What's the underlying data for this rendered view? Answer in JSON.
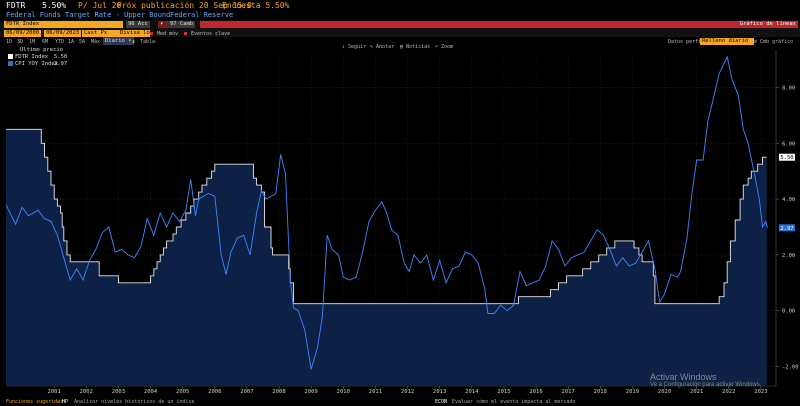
{
  "header": {
    "ticker": "FDTR",
    "last_value": "5.50%",
    "date": "P/ Jul 26",
    "next_release": "Próx publicación 20 Sep 15:0",
    "survey": "Encuesta 5.50%",
    "subtitle": "Federal Funds Target Rate - Upper Bound",
    "source": "Federal Reserve"
  },
  "command_bar": {
    "security": "FDTR Index",
    "actions_label": "96 Acc",
    "compare_label": "97 Camb",
    "chart_title": "Gráfico de líneas"
  },
  "settings_bar": {
    "start_date": "06/09/2000",
    "end_date": "06/09/2023",
    "field": "Last Px",
    "currency": "Divisa local",
    "more_label": "Med móv",
    "events_label": "Eventos clave"
  },
  "range_bar": {
    "ranges": [
      "1D",
      "3D",
      "1M",
      "6M",
      "YTD",
      "1A",
      "5A",
      "Máx"
    ],
    "frequency": "Diario",
    "table_label": "Tabla",
    "data_label": "Datos perfil",
    "data_value": "Relleno diario",
    "chart_settings": "Cmb gráfico"
  },
  "toolbar": {
    "track": "Seguir",
    "annotate": "Anotar",
    "news": "Noticias",
    "zoom": "Zoom"
  },
  "legend": {
    "title": "Último precio",
    "items": [
      {
        "name": "FDTR Index",
        "value": "5.50",
        "color": "#ffffff"
      },
      {
        "name": "CPI YOY Index",
        "value": "2.97",
        "color": "#2b6fd6"
      }
    ]
  },
  "colors": {
    "fdtr_line": "#e8e8e8",
    "fdtr_fill": "#0c2145",
    "cpi_line": "#3f86ff",
    "cpi_label_bg": "#2b6fd6",
    "fdtr_label_bg": "#ffffff"
  },
  "chart_data": {
    "type": "line",
    "x_axis": {
      "ticks": [
        "2001",
        "2002",
        "2003",
        "2004",
        "2005",
        "2006",
        "2007",
        "2008",
        "2009",
        "2010",
        "2011",
        "2012",
        "2013",
        "2014",
        "2015",
        "2016",
        "2017",
        "2018",
        "2019",
        "2020",
        "2021",
        "2022",
        "2023"
      ]
    },
    "y_axis": {
      "ticks": [
        "8.00",
        "6.00",
        "4.00",
        "2.00",
        "0.00",
        "-2.00"
      ],
      "range": [
        -2.7,
        9.2
      ],
      "position": "right"
    },
    "grid": true,
    "series": [
      {
        "name": "FDTR Index",
        "last_label": "5.50",
        "points": [
          [
            2000.0,
            6.5
          ],
          [
            2001.0,
            6.5
          ],
          [
            2001.1,
            6.0
          ],
          [
            2001.2,
            5.5
          ],
          [
            2001.3,
            5.0
          ],
          [
            2001.4,
            4.5
          ],
          [
            2001.5,
            4.0
          ],
          [
            2001.6,
            3.75
          ],
          [
            2001.7,
            3.5
          ],
          [
            2001.75,
            3.0
          ],
          [
            2001.8,
            2.5
          ],
          [
            2001.9,
            2.0
          ],
          [
            2002.0,
            1.75
          ],
          [
            2002.9,
            1.25
          ],
          [
            2003.5,
            1.0
          ],
          [
            2004.5,
            1.25
          ],
          [
            2004.6,
            1.5
          ],
          [
            2004.7,
            1.75
          ],
          [
            2004.8,
            2.0
          ],
          [
            2004.9,
            2.25
          ],
          [
            2005.0,
            2.5
          ],
          [
            2005.2,
            2.75
          ],
          [
            2005.3,
            3.0
          ],
          [
            2005.45,
            3.25
          ],
          [
            2005.6,
            3.5
          ],
          [
            2005.75,
            3.75
          ],
          [
            2005.85,
            4.0
          ],
          [
            2006.0,
            4.25
          ],
          [
            2006.1,
            4.5
          ],
          [
            2006.25,
            4.75
          ],
          [
            2006.4,
            5.0
          ],
          [
            2006.5,
            5.25
          ],
          [
            2007.7,
            4.75
          ],
          [
            2007.8,
            4.5
          ],
          [
            2007.95,
            4.25
          ],
          [
            2008.05,
            3.0
          ],
          [
            2008.25,
            2.25
          ],
          [
            2008.3,
            2.0
          ],
          [
            2008.8,
            1.5
          ],
          [
            2008.85,
            1.0
          ],
          [
            2008.95,
            0.25
          ],
          [
            2015.95,
            0.5
          ],
          [
            2016.95,
            0.75
          ],
          [
            2017.2,
            1.0
          ],
          [
            2017.45,
            1.25
          ],
          [
            2017.95,
            1.5
          ],
          [
            2018.2,
            1.75
          ],
          [
            2018.45,
            2.0
          ],
          [
            2018.7,
            2.25
          ],
          [
            2018.95,
            2.5
          ],
          [
            2019.55,
            2.25
          ],
          [
            2019.7,
            2.0
          ],
          [
            2019.8,
            1.75
          ],
          [
            2020.15,
            1.25
          ],
          [
            2020.2,
            0.25
          ],
          [
            2022.2,
            0.5
          ],
          [
            2022.35,
            1.0
          ],
          [
            2022.45,
            1.75
          ],
          [
            2022.55,
            2.5
          ],
          [
            2022.7,
            3.25
          ],
          [
            2022.85,
            4.0
          ],
          [
            2022.95,
            4.5
          ],
          [
            2023.1,
            4.75
          ],
          [
            2023.2,
            5.0
          ],
          [
            2023.4,
            5.25
          ],
          [
            2023.55,
            5.5
          ],
          [
            2023.68,
            5.5
          ]
        ]
      },
      {
        "name": "CPI YOY Index",
        "last_label": "2.97",
        "points": [
          [
            2000.0,
            3.8
          ],
          [
            2000.3,
            3.1
          ],
          [
            2000.5,
            3.7
          ],
          [
            2000.7,
            3.4
          ],
          [
            2001.0,
            3.6
          ],
          [
            2001.2,
            3.3
          ],
          [
            2001.4,
            3.2
          ],
          [
            2001.6,
            2.7
          ],
          [
            2001.8,
            1.9
          ],
          [
            2002.0,
            1.1
          ],
          [
            2002.2,
            1.5
          ],
          [
            2002.4,
            1.1
          ],
          [
            2002.6,
            1.8
          ],
          [
            2002.8,
            2.2
          ],
          [
            2003.0,
            2.8
          ],
          [
            2003.2,
            3.0
          ],
          [
            2003.4,
            2.1
          ],
          [
            2003.6,
            2.2
          ],
          [
            2003.8,
            2.0
          ],
          [
            2004.0,
            1.9
          ],
          [
            2004.2,
            2.3
          ],
          [
            2004.4,
            3.3
          ],
          [
            2004.6,
            2.7
          ],
          [
            2004.8,
            3.5
          ],
          [
            2005.0,
            3.0
          ],
          [
            2005.2,
            3.5
          ],
          [
            2005.4,
            3.2
          ],
          [
            2005.6,
            3.6
          ],
          [
            2005.75,
            4.7
          ],
          [
            2005.9,
            3.4
          ],
          [
            2006.0,
            4.0
          ],
          [
            2006.3,
            4.2
          ],
          [
            2006.5,
            4.1
          ],
          [
            2006.7,
            2.0
          ],
          [
            2006.85,
            1.3
          ],
          [
            2007.0,
            2.1
          ],
          [
            2007.2,
            2.6
          ],
          [
            2007.4,
            2.7
          ],
          [
            2007.6,
            2.0
          ],
          [
            2007.8,
            3.5
          ],
          [
            2007.95,
            4.3
          ],
          [
            2008.1,
            4.0
          ],
          [
            2008.4,
            4.2
          ],
          [
            2008.55,
            5.6
          ],
          [
            2008.7,
            4.9
          ],
          [
            2008.85,
            1.1
          ],
          [
            2008.95,
            0.1
          ],
          [
            2009.1,
            0.0
          ],
          [
            2009.3,
            -0.7
          ],
          [
            2009.5,
            -2.1
          ],
          [
            2009.7,
            -1.3
          ],
          [
            2009.85,
            -0.2
          ],
          [
            2010.0,
            2.7
          ],
          [
            2010.15,
            2.2
          ],
          [
            2010.35,
            2.0
          ],
          [
            2010.5,
            1.2
          ],
          [
            2010.7,
            1.1
          ],
          [
            2010.9,
            1.2
          ],
          [
            2011.1,
            2.1
          ],
          [
            2011.3,
            3.2
          ],
          [
            2011.5,
            3.6
          ],
          [
            2011.7,
            3.9
          ],
          [
            2011.85,
            3.5
          ],
          [
            2012.0,
            2.9
          ],
          [
            2012.2,
            2.7
          ],
          [
            2012.4,
            1.7
          ],
          [
            2012.55,
            1.4
          ],
          [
            2012.7,
            2.0
          ],
          [
            2012.9,
            1.7
          ],
          [
            2013.1,
            2.0
          ],
          [
            2013.3,
            1.1
          ],
          [
            2013.5,
            1.8
          ],
          [
            2013.7,
            1.0
          ],
          [
            2013.9,
            1.5
          ],
          [
            2014.1,
            1.6
          ],
          [
            2014.3,
            2.1
          ],
          [
            2014.5,
            2.0
          ],
          [
            2014.7,
            1.7
          ],
          [
            2014.9,
            0.8
          ],
          [
            2015.0,
            -0.1
          ],
          [
            2015.2,
            -0.1
          ],
          [
            2015.4,
            0.2
          ],
          [
            2015.6,
            0.0
          ],
          [
            2015.8,
            0.2
          ],
          [
            2016.0,
            1.4
          ],
          [
            2016.2,
            0.9
          ],
          [
            2016.4,
            1.0
          ],
          [
            2016.6,
            1.1
          ],
          [
            2016.8,
            1.6
          ],
          [
            2017.0,
            2.5
          ],
          [
            2017.2,
            2.2
          ],
          [
            2017.4,
            1.6
          ],
          [
            2017.6,
            1.9
          ],
          [
            2017.8,
            2.0
          ],
          [
            2018.0,
            2.1
          ],
          [
            2018.2,
            2.5
          ],
          [
            2018.4,
            2.9
          ],
          [
            2018.6,
            2.7
          ],
          [
            2018.8,
            2.2
          ],
          [
            2019.0,
            1.6
          ],
          [
            2019.2,
            1.9
          ],
          [
            2019.4,
            1.6
          ],
          [
            2019.6,
            1.7
          ],
          [
            2019.8,
            2.1
          ],
          [
            2020.0,
            2.5
          ],
          [
            2020.2,
            1.5
          ],
          [
            2020.35,
            0.3
          ],
          [
            2020.5,
            0.6
          ],
          [
            2020.7,
            1.3
          ],
          [
            2020.9,
            1.2
          ],
          [
            2021.0,
            1.4
          ],
          [
            2021.2,
            2.6
          ],
          [
            2021.35,
            4.2
          ],
          [
            2021.5,
            5.4
          ],
          [
            2021.7,
            5.4
          ],
          [
            2021.85,
            6.8
          ],
          [
            2022.0,
            7.5
          ],
          [
            2022.2,
            8.5
          ],
          [
            2022.45,
            9.1
          ],
          [
            2022.6,
            8.3
          ],
          [
            2022.8,
            7.7
          ],
          [
            2022.95,
            6.5
          ],
          [
            2023.1,
            6.0
          ],
          [
            2023.3,
            4.9
          ],
          [
            2023.45,
            4.0
          ],
          [
            2023.55,
            3.0
          ],
          [
            2023.65,
            3.2
          ],
          [
            2023.7,
            2.97
          ]
        ]
      }
    ]
  },
  "footer": {
    "left": "Funciones sugeridas",
    "hint1_code": "HP",
    "hint1": "Analizar niveles históricos de un índice",
    "hint2_code": "ECON",
    "hint2": "Evaluar cómo el evento impacta al mercado"
  },
  "watermark": {
    "line1": "Activar Windows",
    "line2": "Ve a Configuración para activar Windows."
  }
}
